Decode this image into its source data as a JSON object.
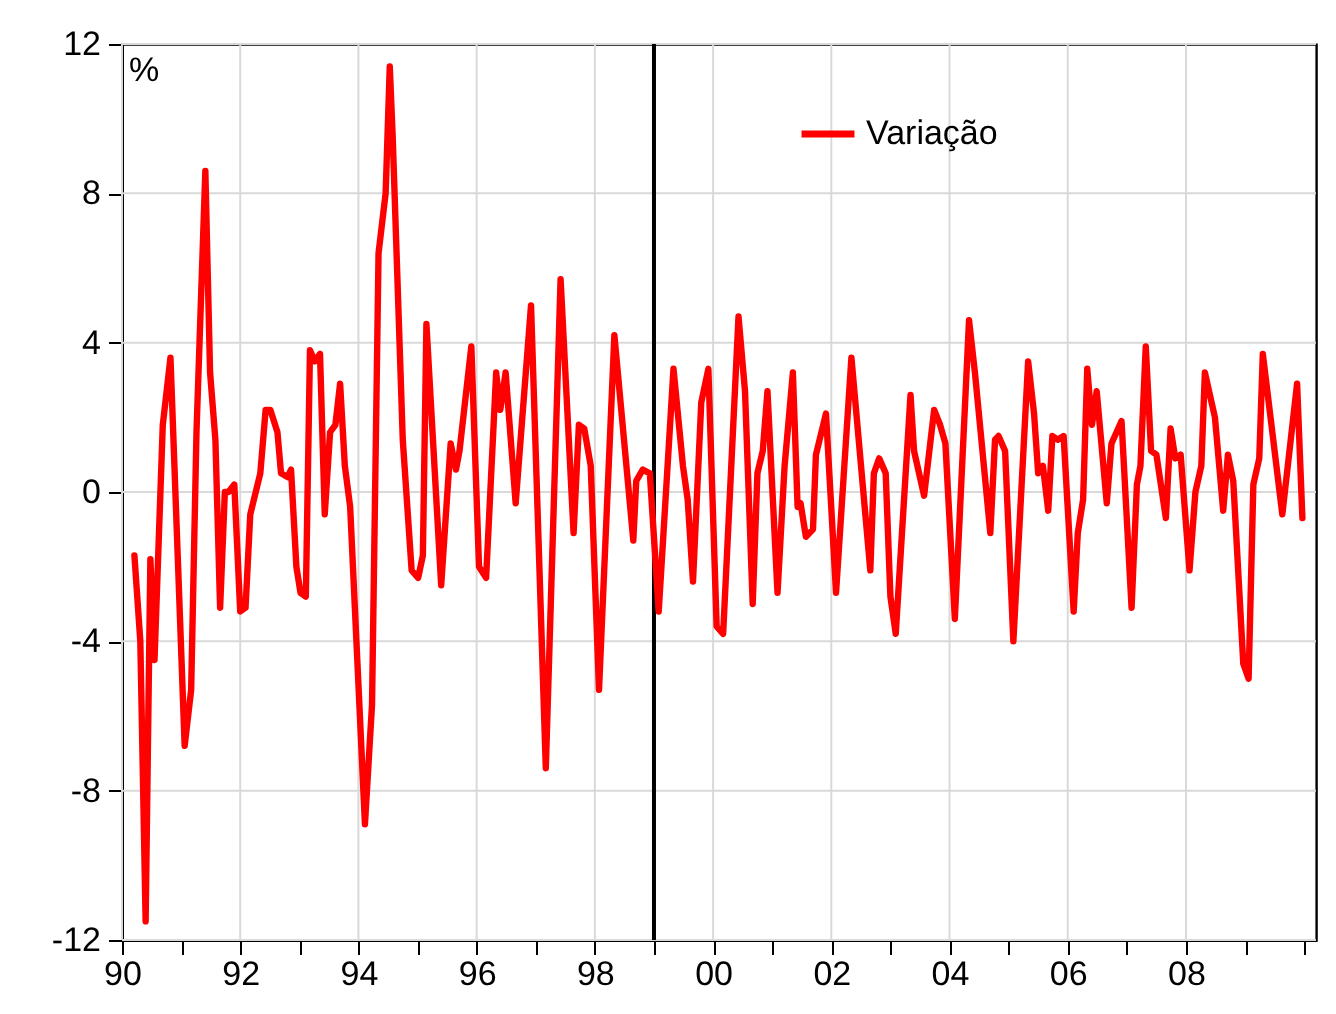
{
  "chart_data": {
    "type": "line",
    "ylabel": "%",
    "xlim": [
      1990,
      2010.2
    ],
    "ylim": [
      -12,
      12
    ],
    "xticks": [
      {
        "value": 1990,
        "label": "90"
      },
      {
        "value": 1991,
        "label": null
      },
      {
        "value": 1992,
        "label": "92"
      },
      {
        "value": 1993,
        "label": null
      },
      {
        "value": 1994,
        "label": "94"
      },
      {
        "value": 1995,
        "label": null
      },
      {
        "value": 1996,
        "label": "96"
      },
      {
        "value": 1997,
        "label": null
      },
      {
        "value": 1998,
        "label": "98"
      },
      {
        "value": 1999,
        "label": null
      },
      {
        "value": 2000,
        "label": "00"
      },
      {
        "value": 2001,
        "label": null
      },
      {
        "value": 2002,
        "label": "02"
      },
      {
        "value": 2003,
        "label": null
      },
      {
        "value": 2004,
        "label": "04"
      },
      {
        "value": 2005,
        "label": null
      },
      {
        "value": 2006,
        "label": "06"
      },
      {
        "value": 2007,
        "label": null
      },
      {
        "value": 2008,
        "label": "08"
      },
      {
        "value": 2009,
        "label": null
      },
      {
        "value": 2010,
        "label": null
      }
    ],
    "yticks": [
      -12,
      -8,
      -4,
      0,
      4,
      8,
      12
    ],
    "grid": true,
    "legend": "top right",
    "line_style": "solid",
    "ref_lines": [
      {
        "axis": "x",
        "value": 1999,
        "label": null,
        "color": "#000000"
      }
    ],
    "series": [
      {
        "name": "Variação",
        "color": "#ff0000",
        "x": [
          1990.21,
          1990.31,
          1990.4,
          1990.48,
          1990.55,
          1990.69,
          1990.82,
          1991.06,
          1991.17,
          1991.26,
          1991.41,
          1991.49,
          1991.58,
          1991.66,
          1991.74,
          1991.8,
          1991.9,
          1992.0,
          1992.09,
          1992.17,
          1992.34,
          1992.43,
          1992.51,
          1992.63,
          1992.69,
          1992.8,
          1992.86,
          1992.95,
          1993.02,
          1993.11,
          1993.18,
          1993.26,
          1993.35,
          1993.43,
          1993.52,
          1993.61,
          1993.69,
          1993.77,
          1993.86,
          1994.11,
          1994.23,
          1994.34,
          1994.46,
          1994.53,
          1994.58,
          1994.75,
          1994.9,
          1995.01,
          1995.09,
          1995.15,
          1995.4,
          1995.56,
          1995.65,
          1995.71,
          1995.91,
          1996.04,
          1996.16,
          1996.33,
          1996.4,
          1996.49,
          1996.66,
          1996.92,
          1997.17,
          1997.42,
          1997.64,
          1997.73,
          1997.82,
          1997.93,
          1998.07,
          1998.33,
          1998.65,
          1998.7,
          1998.81,
          1998.93,
          1999.08,
          1999.33,
          1999.49,
          1999.57,
          1999.66,
          1999.8,
          1999.92,
          2000.06,
          2000.17,
          2000.43,
          2000.54,
          2000.67,
          2000.75,
          2000.84,
          2000.92,
          2001.09,
          2001.21,
          2001.35,
          2001.43,
          2001.48,
          2001.57,
          2001.69,
          2001.74,
          2001.91,
          2002.08,
          2002.34,
          2002.66,
          2002.72,
          2002.81,
          2002.92,
          2003.0,
          2003.09,
          2003.34,
          2003.4,
          2003.57,
          2003.74,
          2003.84,
          2003.93,
          2004.09,
          2004.33,
          2004.43,
          2004.69,
          2004.77,
          2004.83,
          2004.94,
          2005.08,
          2005.33,
          2005.43,
          2005.5,
          2005.58,
          2005.67,
          2005.74,
          2005.83,
          2005.93,
          2006.1,
          2006.17,
          2006.26,
          2006.33,
          2006.41,
          2006.49,
          2006.66,
          2006.74,
          2006.91,
          2007.08,
          2007.17,
          2007.23,
          2007.32,
          2007.41,
          2007.5,
          2007.66,
          2007.74,
          2007.82,
          2007.91,
          2008.06,
          2008.16,
          2008.26,
          2008.32,
          2008.49,
          2008.63,
          2008.71,
          2008.8,
          2008.97,
          2009.06,
          2009.14,
          2009.24,
          2009.3,
          2009.63,
          2009.88,
          2009.97
        ],
        "values": [
          -1.7,
          -4.0,
          -11.5,
          -1.8,
          -4.5,
          1.8,
          3.6,
          -6.8,
          -5.3,
          1.6,
          8.6,
          3.2,
          1.4,
          -3.1,
          0,
          0,
          0.2,
          -3.2,
          -3.1,
          -0.6,
          0.5,
          2.2,
          2.2,
          1.6,
          0.5,
          0.4,
          0.6,
          -2.0,
          -2.7,
          -2.8,
          3.8,
          3.5,
          3.7,
          -0.6,
          1.6,
          1.8,
          2.9,
          0.7,
          -0.4,
          -8.9,
          -5.7,
          6.4,
          8.0,
          11.4,
          9.5,
          1.4,
          -2.1,
          -2.3,
          -1.7,
          4.5,
          -2.5,
          1.3,
          0.6,
          1.1,
          3.9,
          -2.0,
          -2.3,
          3.2,
          2.2,
          3.2,
          -0.3,
          5.0,
          -7.4,
          5.7,
          -1.1,
          1.8,
          1.7,
          0.7,
          -5.3,
          4.2,
          -1.3,
          0.3,
          0.6,
          0.5,
          -3.2,
          3.3,
          0.7,
          -0.2,
          -2.4,
          2.4,
          3.3,
          -3.6,
          -3.8,
          4.7,
          2.7,
          -3.0,
          0.5,
          1.1,
          2.7,
          -2.7,
          0.7,
          3.2,
          -0.4,
          -0.3,
          -1.2,
          -1.0,
          1.0,
          2.1,
          -2.7,
          3.6,
          -2.1,
          0.5,
          0.9,
          0.5,
          -2.8,
          -3.8,
          2.6,
          1.1,
          -0.1,
          2.2,
          1.8,
          1.3,
          -3.4,
          4.6,
          3.2,
          -1.1,
          1.4,
          1.5,
          1.1,
          -4.0,
          3.5,
          2.1,
          0.5,
          0.7,
          -0.5,
          1.5,
          1.4,
          1.5,
          -3.2,
          -1.1,
          -0.2,
          3.3,
          1.8,
          2.7,
          -0.3,
          1.3,
          1.9,
          -3.1,
          0.2,
          0.7,
          3.9,
          1.1,
          1.0,
          -0.7,
          1.7,
          0.9,
          1.0,
          -2.1,
          0,
          0.7,
          3.2,
          2.0,
          -0.5,
          1.0,
          0.3,
          -4.6,
          -5.0,
          0.2,
          0.9,
          3.7,
          -0.6,
          2.9,
          -0.7
        ]
      }
    ]
  }
}
